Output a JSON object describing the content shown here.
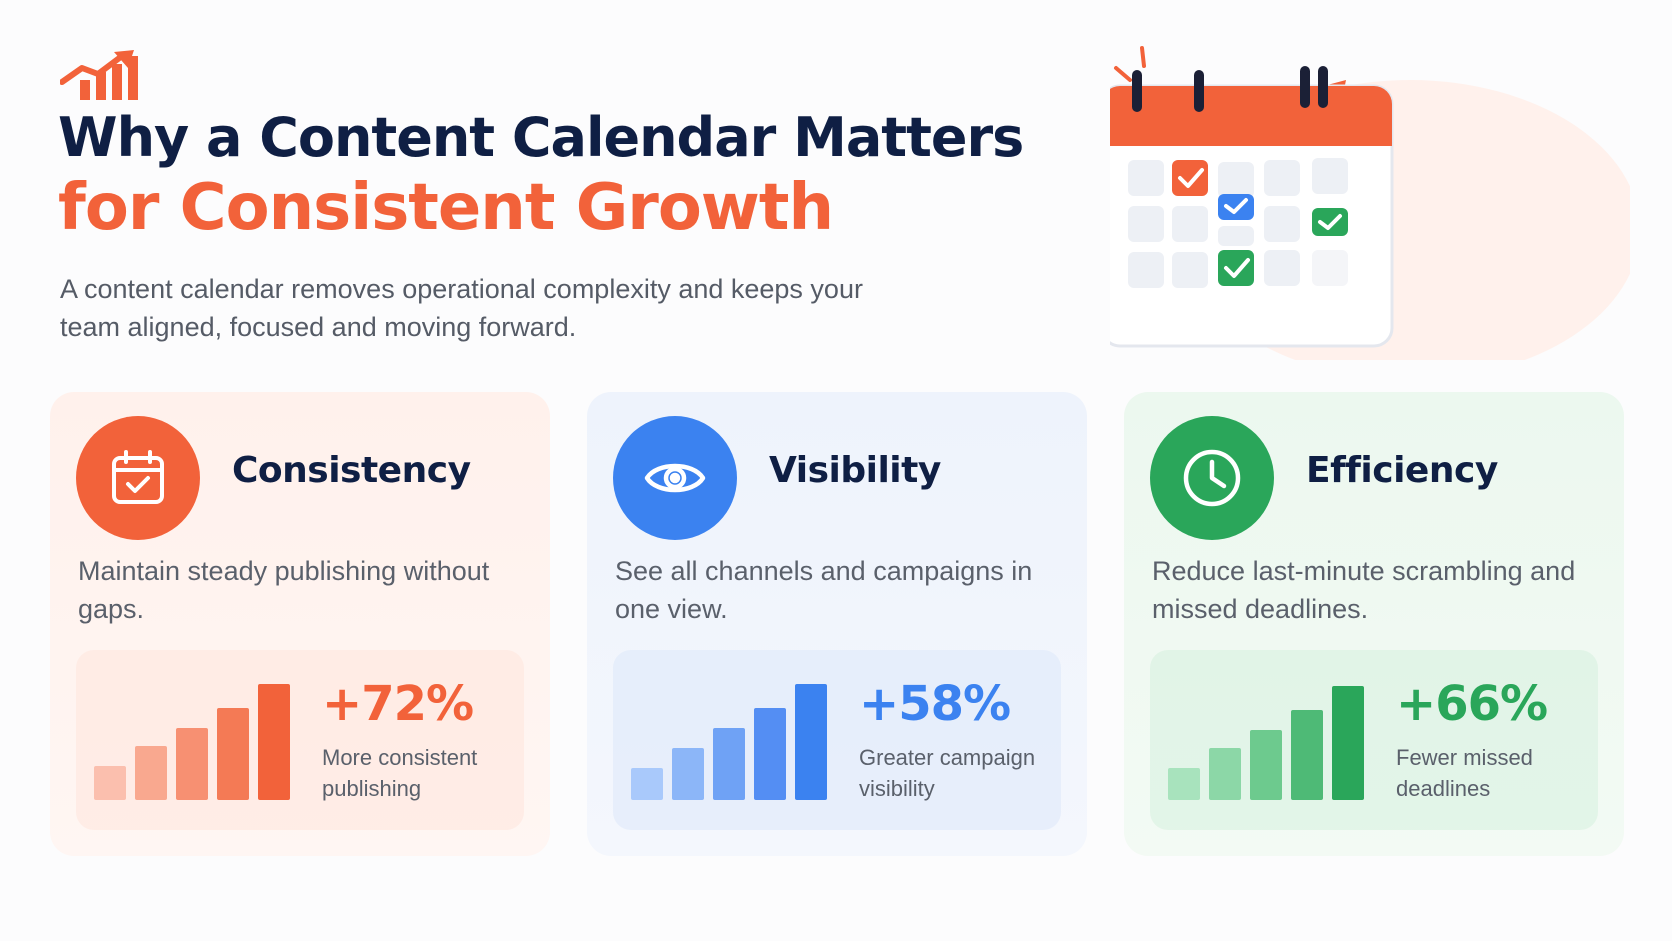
{
  "header": {
    "title_line1": "Why a Content Calendar Matters",
    "title_line2": "for Consistent Growth",
    "intro": "A content calendar removes operational complexity and keeps your team aligned, focused and moving forward."
  },
  "colors": {
    "navy": "#0f1f44",
    "orange": "#f2623a",
    "blue": "#3b82f0",
    "green": "#2aa65a"
  },
  "cards": [
    {
      "title": "Consistency",
      "icon": "calendar-check-icon",
      "description": "Maintain steady publishing without gaps.",
      "stat_value": "+72%",
      "stat_label": "More consistent publishing",
      "bar_colors": [
        "#fbbfae",
        "#f9a88f",
        "#f79072",
        "#f47a55",
        "#f2623a"
      ]
    },
    {
      "title": "Visibility",
      "icon": "eye-icon",
      "description": "See all channels and campaigns in one view.",
      "stat_value": "+58%",
      "stat_label": "Greater campaign visibility",
      "bar_colors": [
        "#a9c9fb",
        "#8cb6f8",
        "#6fa2f5",
        "#548ef3",
        "#3b82f0"
      ]
    },
    {
      "title": "Efficiency",
      "icon": "clock-icon",
      "description": "Reduce last-minute scrambling and missed deadlines.",
      "stat_value": "+66%",
      "stat_label": "Fewer missed deadlines",
      "bar_colors": [
        "#a8e3bd",
        "#8cd7a7",
        "#6dca8e",
        "#4eba76",
        "#2aa65a"
      ]
    }
  ]
}
